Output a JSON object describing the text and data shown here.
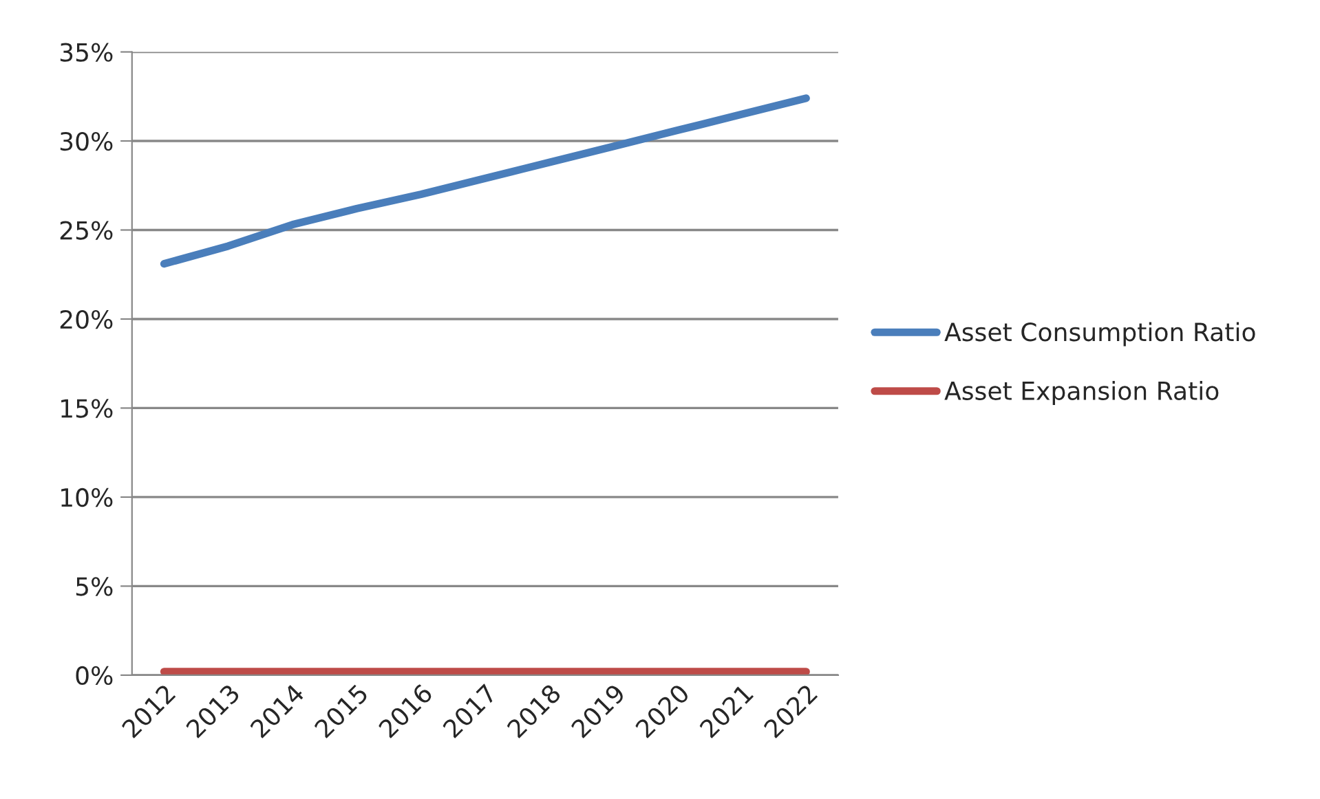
{
  "chart_data": {
    "type": "line",
    "categories": [
      "2012",
      "2013",
      "2014",
      "2015",
      "2016",
      "2017",
      "2018",
      "2019",
      "2020",
      "2021",
      "2022"
    ],
    "series": [
      {
        "name": "Asset Consumption Ratio",
        "color": "#4a7ebb",
        "values": [
          23.1,
          24.1,
          25.3,
          26.2,
          27.0,
          27.9,
          28.8,
          29.7,
          30.6,
          31.5,
          32.4
        ]
      },
      {
        "name": "Asset Expansion Ratio",
        "color": "#be4b48",
        "values": [
          0.2,
          0.2,
          0.2,
          0.2,
          0.2,
          0.2,
          0.2,
          0.2,
          0.2,
          0.2,
          0.2
        ]
      }
    ],
    "ylim": [
      0,
      35
    ],
    "yticks": [
      {
        "value": 0,
        "label": "0%"
      },
      {
        "value": 5,
        "label": "5%"
      },
      {
        "value": 10,
        "label": "10%"
      },
      {
        "value": 15,
        "label": "15%"
      },
      {
        "value": 20,
        "label": "20%"
      },
      {
        "value": 25,
        "label": "25%"
      },
      {
        "value": 30,
        "label": "30%"
      },
      {
        "value": 35,
        "label": "35%"
      }
    ],
    "grid": "y",
    "legend": "right",
    "marker": "none",
    "line_style": "solid"
  }
}
